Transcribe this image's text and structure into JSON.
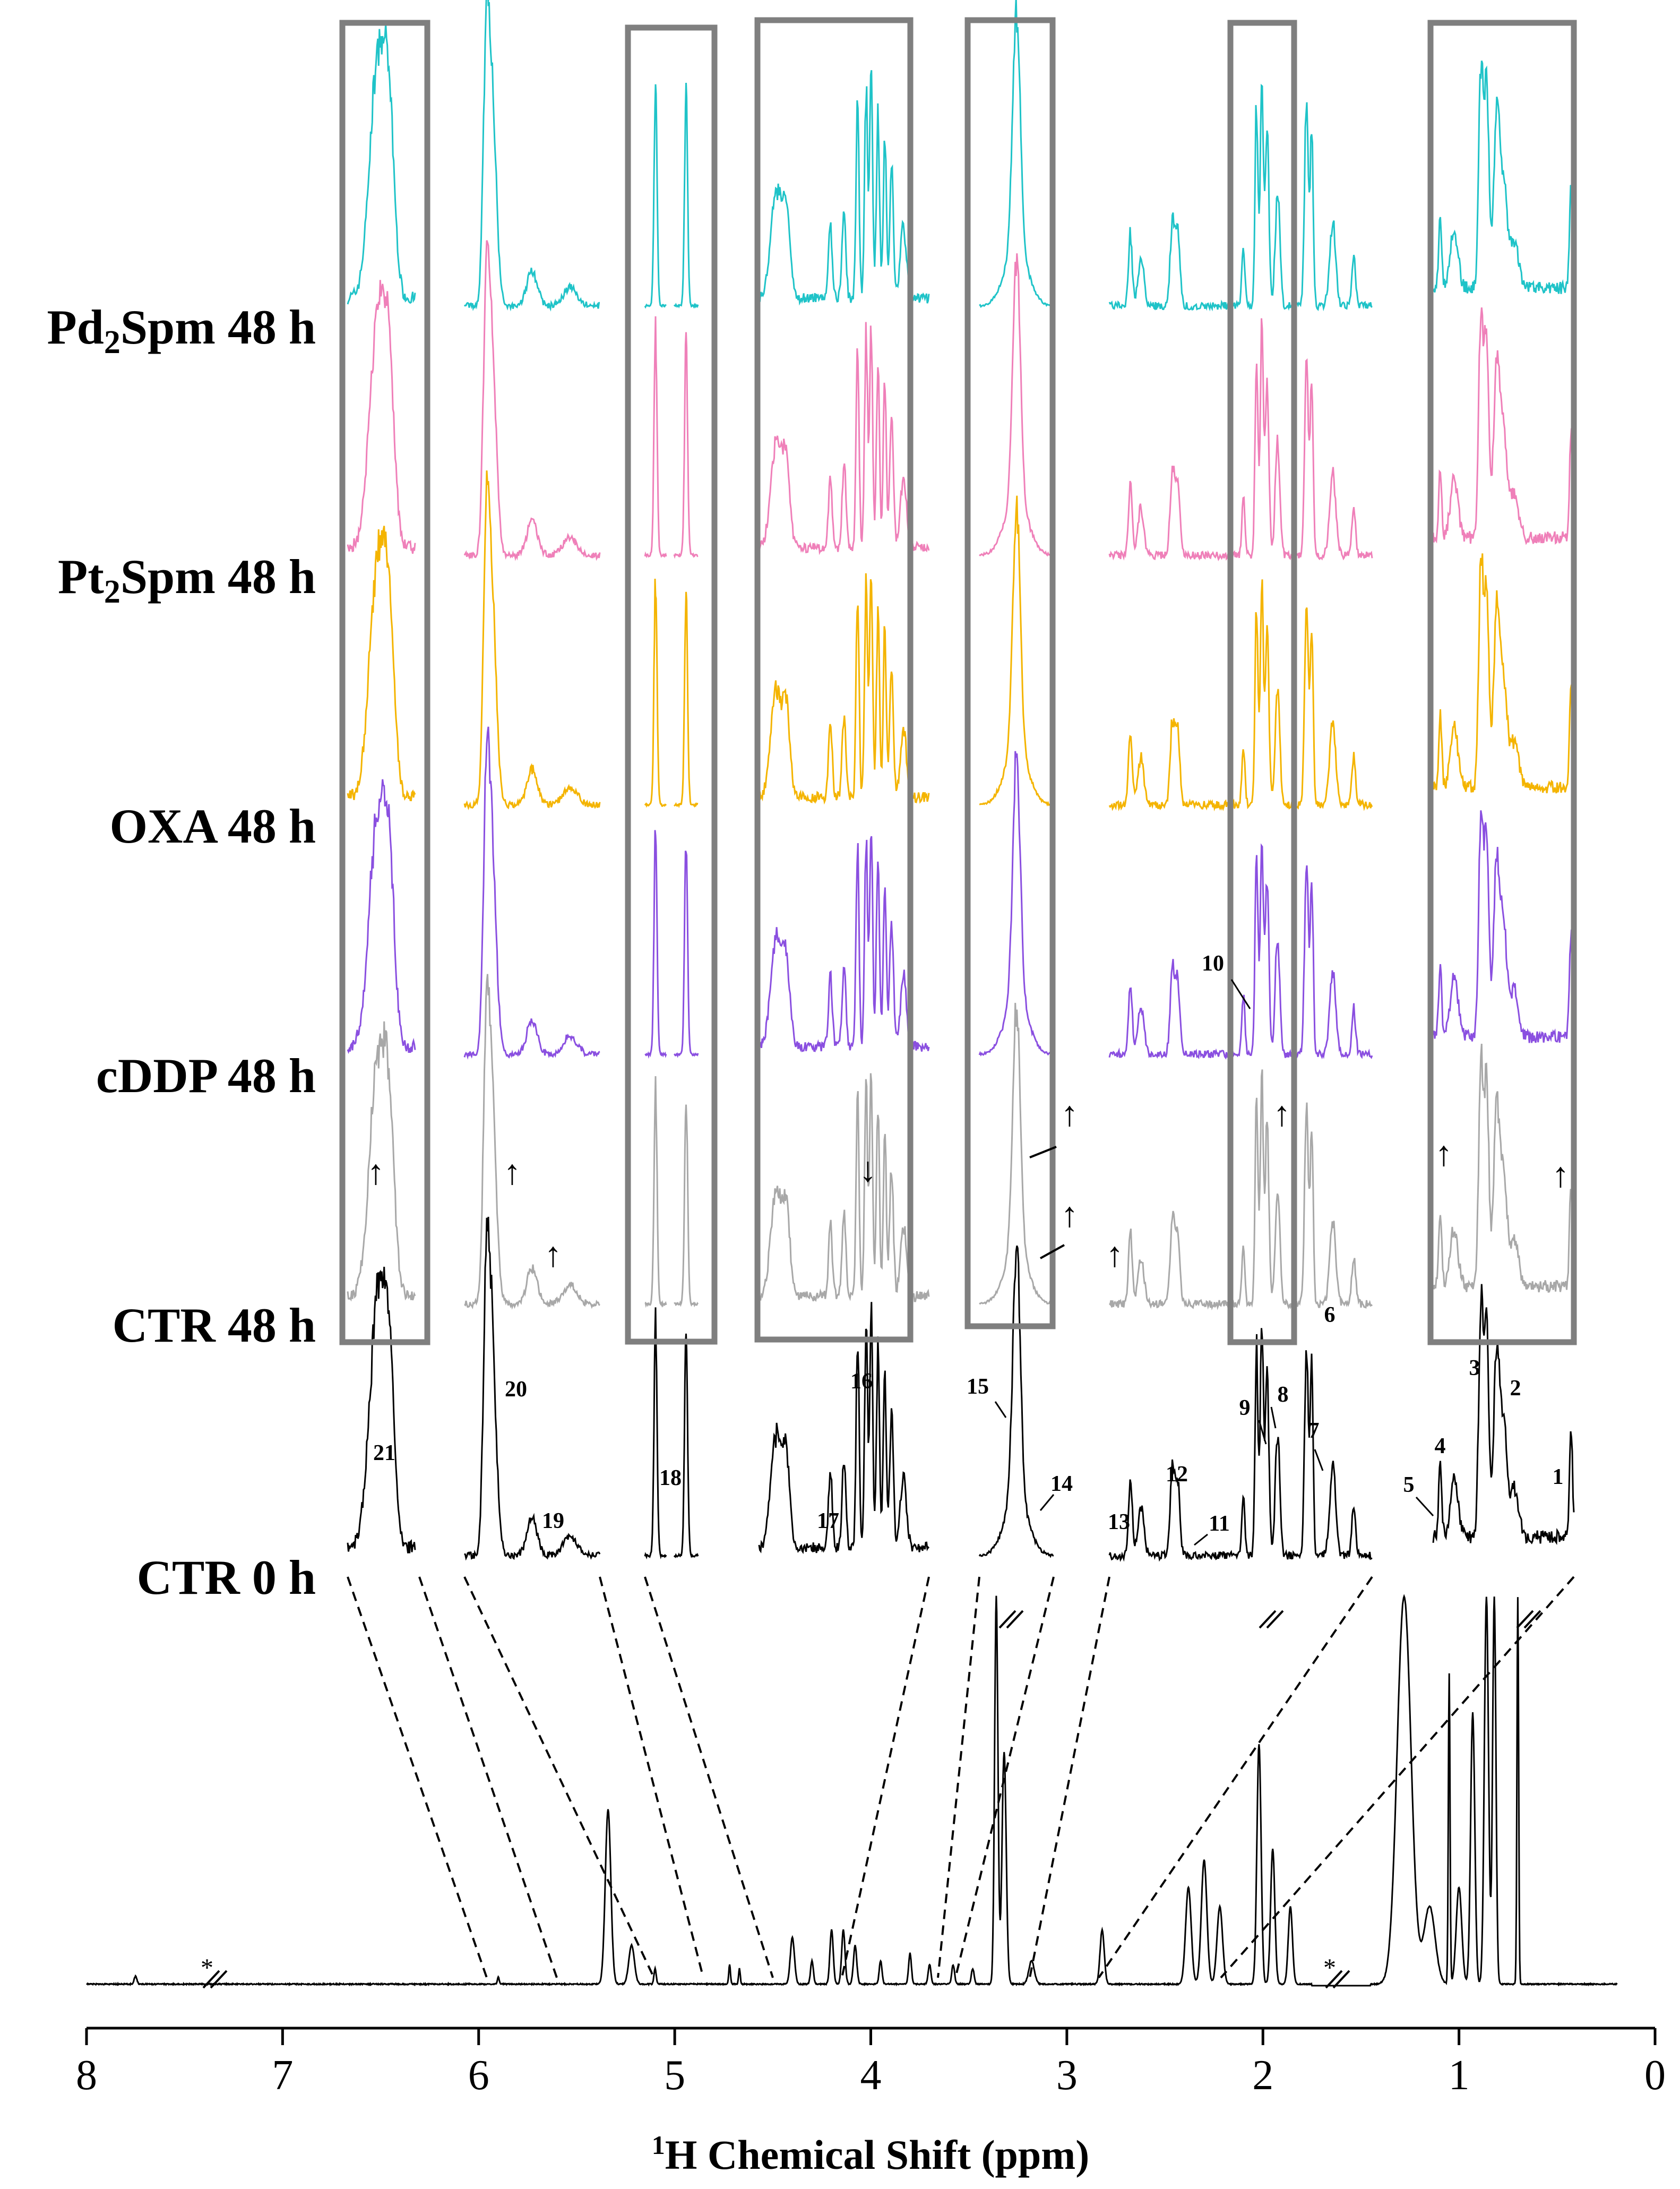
{
  "chart_data": {
    "type": "line",
    "title": "",
    "xlabel_sup": "1",
    "xlabel_text": "H Chemical Shift (ppm)",
    "xlim": [
      8,
      0
    ],
    "x_ticks": [
      "8",
      "7",
      "6",
      "5",
      "4",
      "3",
      "2",
      "1",
      "0"
    ],
    "series_labels": {
      "pd2spm_prefix": "Pd",
      "pd2spm_sub": "2",
      "pd2spm_suffix": "Spm 48 h",
      "pt2spm_prefix": "Pt",
      "pt2spm_sub": "2",
      "pt2spm_suffix": "Spm 48 h",
      "oxa": "OXA 48 h",
      "cddp": "cDDP 48 h",
      "ctr48": "CTR 48 h",
      "ctr0": "CTR 0 h"
    },
    "series": [
      {
        "name": "Pd2Spm 48 h",
        "color": "#1fc3c8"
      },
      {
        "name": "Pt2Spm 48 h",
        "color": "#ef80b9"
      },
      {
        "name": "OXA 48 h",
        "color": "#f4b400"
      },
      {
        "name": "cDDP 48 h",
        "color": "#8a4fe0"
      },
      {
        "name": "CTR 48 h",
        "color": "#a8a8a8"
      },
      {
        "name": "CTR 0 h",
        "color": "#000000"
      }
    ],
    "peak_labels": [
      "1",
      "2",
      "3",
      "4",
      "5",
      "6",
      "7",
      "8",
      "9",
      "10",
      "11",
      "12",
      "13",
      "14",
      "15",
      "16",
      "17",
      "18",
      "19",
      "20",
      "21"
    ],
    "segments": [
      {
        "from": 6.0,
        "to": 5.85
      },
      {
        "from": 5.85,
        "to": 5.45
      },
      {
        "from": 5.45,
        "to": 4.75
      },
      {
        "from": 4.75,
        "to": 3.5
      },
      {
        "from": 3.45,
        "to": 3.1
      },
      {
        "from": 3.05,
        "to": 1.8
      },
      {
        "from": 1.4,
        "to": 0.6
      }
    ],
    "arrow_up": "↑",
    "arrow_down": "↓",
    "asterisk": "*"
  }
}
